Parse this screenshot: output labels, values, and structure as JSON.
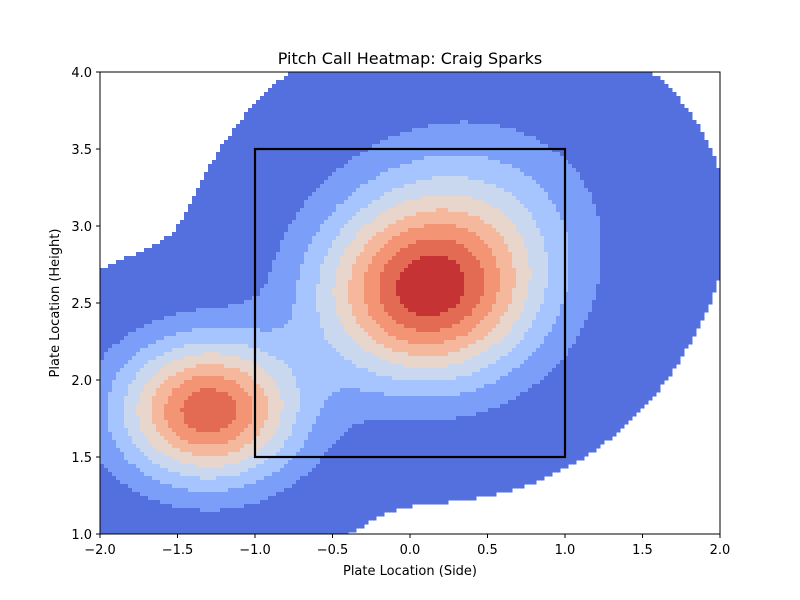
{
  "chart_data": {
    "type": "heatmap",
    "subtype": "kde-contour",
    "title": "Pitch Call Heatmap: Craig Sparks",
    "xlabel": "Plate Location (Side)",
    "ylabel": "Plate Location (Height)",
    "xlim": [
      -2.0,
      2.0
    ],
    "ylim": [
      1.0,
      4.0
    ],
    "x_ticks": [
      -2.0,
      -1.5,
      -1.0,
      -0.5,
      0.0,
      0.5,
      1.0,
      1.5,
      2.0
    ],
    "x_tick_labels": [
      "−2.0",
      "−1.5",
      "−1.0",
      "−0.5",
      "0.0",
      "0.5",
      "1.0",
      "1.5",
      "2.0"
    ],
    "y_ticks": [
      1.0,
      1.5,
      2.0,
      2.5,
      3.0,
      3.5,
      4.0
    ],
    "y_tick_labels": [
      "1.0",
      "1.5",
      "2.0",
      "2.5",
      "3.0",
      "3.5",
      "4.0"
    ],
    "colormap": "coolwarm",
    "level_colors": [
      "#5470de",
      "#7b9ff9",
      "#a6c4fe",
      "#c9d8ef",
      "#e8d6cc",
      "#f6b89c",
      "#f39475",
      "#e36a53",
      "#c53334"
    ],
    "grid": false,
    "legend": "none",
    "density_components": [
      {
        "x": -1.3,
        "y": 1.8,
        "sx": 0.4,
        "sy": 0.32,
        "w": 1.0
      },
      {
        "x": 0.1,
        "y": 2.55,
        "sx": 0.48,
        "sy": 0.4,
        "w": 1.0
      },
      {
        "x": 0.4,
        "y": 3.05,
        "sx": 0.55,
        "sy": 0.45,
        "w": 0.3
      }
    ],
    "strike_zone": {
      "x": [
        -1.0,
        1.0
      ],
      "y": [
        1.5,
        3.5
      ],
      "color": "#000000"
    }
  }
}
